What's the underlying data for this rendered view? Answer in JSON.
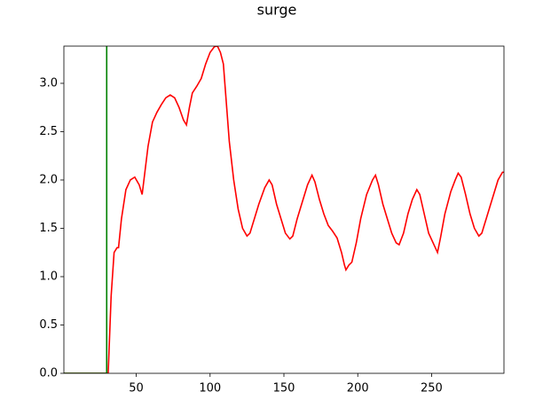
{
  "chart_data": {
    "type": "line",
    "title": "surge",
    "xlim": [
      1,
      299
    ],
    "ylim": [
      0,
      3.385
    ],
    "xticks": [
      50,
      100,
      150,
      200,
      250
    ],
    "yticks": [
      {
        "value": 0,
        "label": "0.0"
      },
      {
        "value": 0.5,
        "label": "0.5"
      },
      {
        "value": 1,
        "label": "1.0"
      },
      {
        "value": 1.5,
        "label": "1.5"
      },
      {
        "value": 2,
        "label": "2.0"
      },
      {
        "value": 2.5,
        "label": "2.5"
      },
      {
        "value": 3,
        "label": "3.0"
      }
    ],
    "series": [
      {
        "color": "#ff0000",
        "x": [
          1,
          31,
          33,
          35,
          37,
          38,
          40,
          43,
          46,
          49,
          52,
          54,
          56,
          58,
          61,
          64,
          67,
          70,
          73,
          76,
          79,
          82,
          84,
          86,
          88,
          91,
          94,
          97,
          100,
          103,
          105,
          107,
          109,
          111,
          113,
          116,
          119,
          122,
          125,
          127,
          130,
          133,
          137,
          140,
          142,
          145,
          148,
          151,
          154,
          156,
          159,
          163,
          166,
          169,
          171,
          174,
          177,
          180,
          183,
          186,
          189,
          191,
          192,
          194,
          196,
          199,
          202,
          206,
          210,
          212,
          214,
          217,
          220,
          223,
          226,
          228,
          231,
          234,
          237,
          240,
          242,
          245,
          248,
          251,
          254,
          256,
          259,
          263,
          266,
          268,
          270,
          273,
          276,
          279,
          282,
          284,
          287,
          291,
          295,
          298,
          299
        ],
        "values": [
          0,
          0,
          0.8,
          1.25,
          1.3,
          1.3,
          1.6,
          1.9,
          2.0,
          2.03,
          1.95,
          1.85,
          2.1,
          2.35,
          2.6,
          2.7,
          2.78,
          2.85,
          2.88,
          2.85,
          2.75,
          2.62,
          2.57,
          2.75,
          2.9,
          2.97,
          3.05,
          3.2,
          3.32,
          3.38,
          3.385,
          3.32,
          3.2,
          2.8,
          2.4,
          2.0,
          1.7,
          1.5,
          1.42,
          1.45,
          1.6,
          1.75,
          1.92,
          2.0,
          1.95,
          1.75,
          1.6,
          1.45,
          1.39,
          1.42,
          1.6,
          1.8,
          1.95,
          2.05,
          1.98,
          1.8,
          1.65,
          1.53,
          1.47,
          1.4,
          1.25,
          1.12,
          1.07,
          1.12,
          1.15,
          1.35,
          1.6,
          1.85,
          2.0,
          2.05,
          1.95,
          1.75,
          1.6,
          1.45,
          1.35,
          1.33,
          1.45,
          1.65,
          1.8,
          1.9,
          1.85,
          1.65,
          1.45,
          1.35,
          1.25,
          1.4,
          1.65,
          1.88,
          2.0,
          2.07,
          2.03,
          1.85,
          1.65,
          1.5,
          1.42,
          1.45,
          1.6,
          1.8,
          2.0,
          2.08,
          2.08
        ]
      },
      {
        "color": "#008000",
        "x": [
          1,
          30,
          30
        ],
        "values": [
          0,
          0,
          3.385
        ]
      }
    ]
  }
}
